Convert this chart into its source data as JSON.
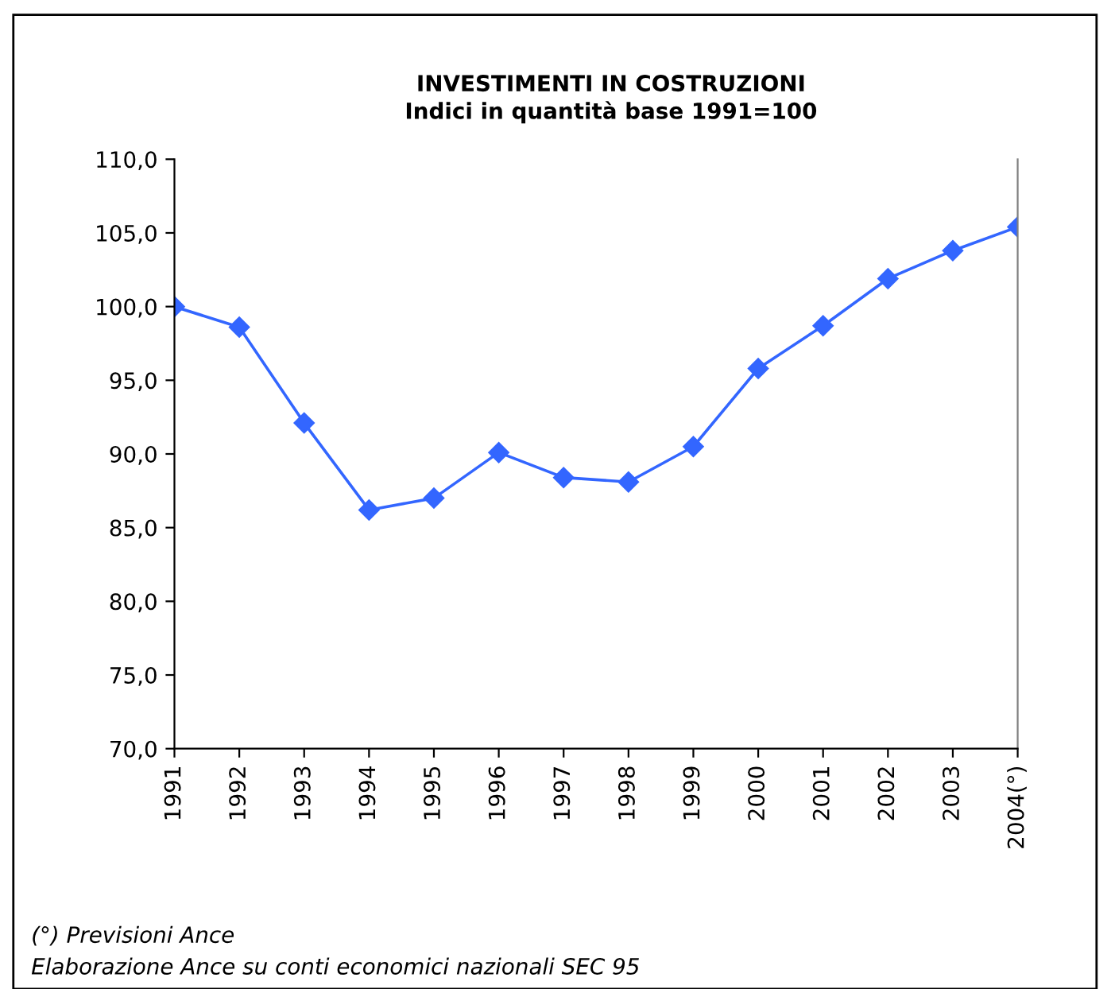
{
  "chart_data": {
    "type": "line",
    "title": "INVESTIMENTI IN COSTRUZIONI\nIndici in quantità base 1991=100",
    "categories": [
      "1991",
      "1992",
      "1993",
      "1994",
      "1995",
      "1996",
      "1997",
      "1998",
      "1999",
      "2000",
      "2001",
      "2002",
      "2003",
      "2004(°)"
    ],
    "series": [
      {
        "color": "#3366ff",
        "values": [
          100.0,
          98.6,
          92.1,
          86.2,
          87.0,
          90.1,
          88.4,
          88.1,
          90.5,
          95.8,
          98.7,
          101.9,
          103.8,
          105.4
        ]
      }
    ],
    "ylim": [
      70,
      110
    ],
    "yticks": [
      {
        "value": 70,
        "label": "70,0"
      },
      {
        "value": 75,
        "label": "75,0"
      },
      {
        "value": 80,
        "label": "80,0"
      },
      {
        "value": 85,
        "label": "85,0"
      },
      {
        "value": 90,
        "label": "90,0"
      },
      {
        "value": 95,
        "label": "95,0"
      },
      {
        "value": 100,
        "label": "100,0"
      },
      {
        "value": 105,
        "label": "105,0"
      },
      {
        "value": 110,
        "label": "110,0"
      }
    ],
    "grid": false,
    "legend": false,
    "marker": "diamond",
    "line_style": "solid",
    "annotations": [
      "(°) Previsioni Ance",
      "Elaborazione Ance su conti economici nazionali SEC 95"
    ]
  }
}
